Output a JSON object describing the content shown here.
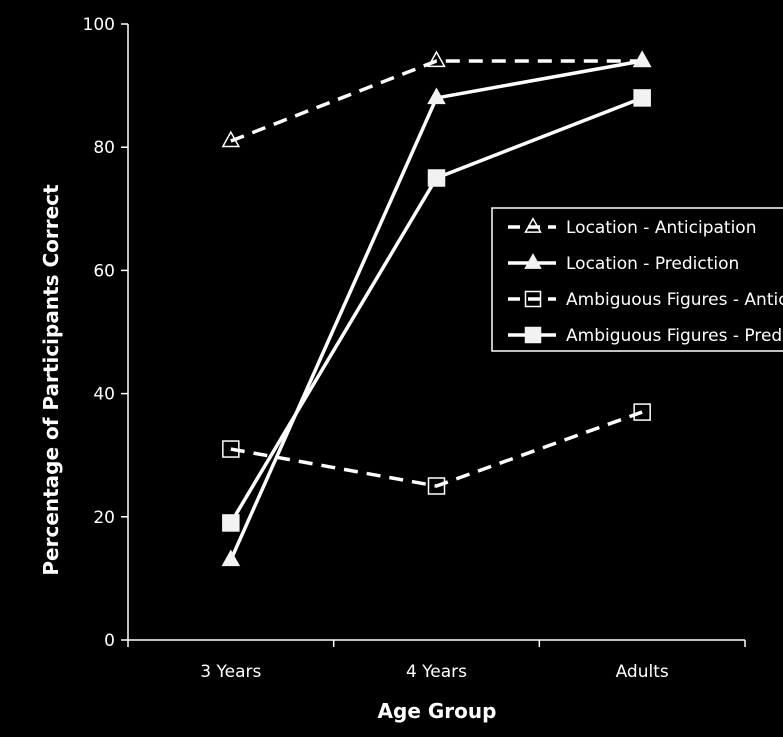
{
  "chart_data": {
    "type": "line",
    "title": "",
    "xlabel": "Age Group",
    "ylabel": "Percentage of Participants Correct",
    "categories": [
      "3 Years",
      "4 Years",
      "Adults"
    ],
    "ylim": [
      0,
      100
    ],
    "yticks": [
      0,
      20,
      40,
      60,
      80,
      100
    ],
    "grid": false,
    "legend_position": "right",
    "series": [
      {
        "name": "Location - Anticipation",
        "values": [
          81,
          94,
          94
        ],
        "line": "dashed",
        "marker": "triangle-open"
      },
      {
        "name": "Location - Prediction",
        "values": [
          13,
          88,
          94
        ],
        "line": "solid",
        "marker": "triangle-filled"
      },
      {
        "name": "Ambiguous Figures - Anticipation",
        "values": [
          31,
          25,
          37
        ],
        "line": "dashed",
        "marker": "square-open"
      },
      {
        "name": "Ambiguous Figures - Prediction",
        "values": [
          19,
          75,
          88
        ],
        "line": "solid",
        "marker": "square-filled"
      }
    ],
    "colors": {
      "background": "#000000",
      "foreground": "#ffffff",
      "marker_fill": "#f2f2f2"
    }
  }
}
